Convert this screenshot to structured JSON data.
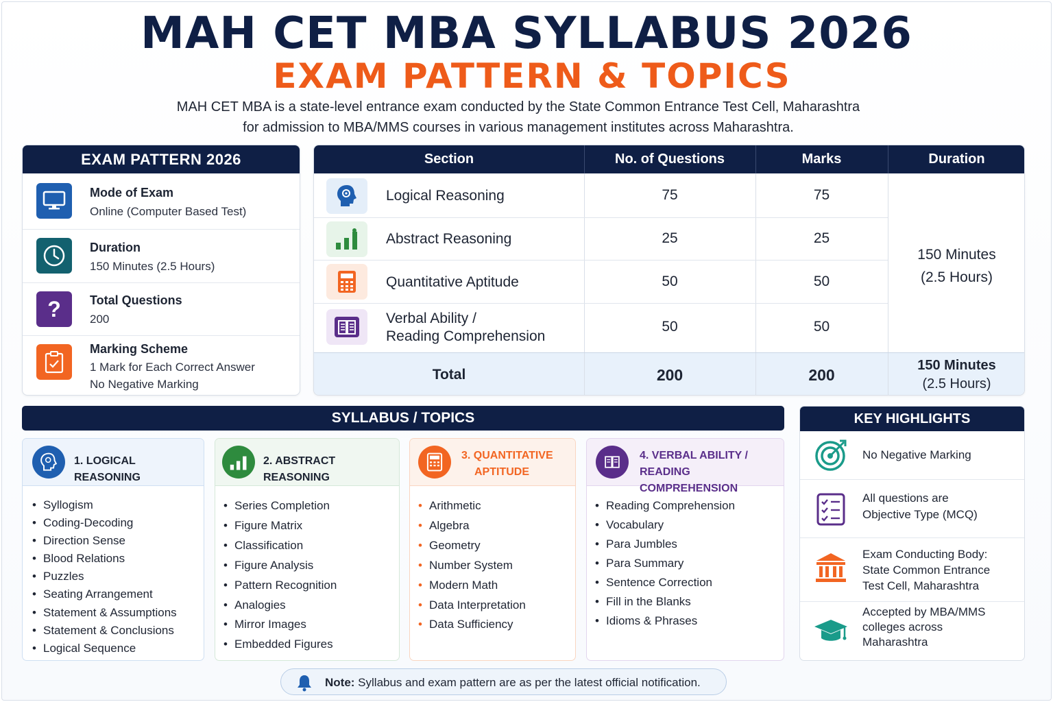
{
  "header": {
    "title": "MAH CET MBA SYLLABUS 2026",
    "subtitle": "EXAM PATTERN & TOPICS",
    "intro_line1": "MAH CET MBA is a state-level entrance exam conducted by the State Common Entrance Test Cell, Maharashtra",
    "intro_line2": "for admission to MBA/MMS courses in various management institutes across Maharashtra."
  },
  "pattern": {
    "heading": "EXAM PATTERN 2026",
    "items": [
      {
        "label": "Mode of Exam",
        "value1": "Online (Computer Based Test)",
        "value2": "",
        "icon": "monitor-icon",
        "color": "#1f5fb0"
      },
      {
        "label": "Duration",
        "value1": "150 Minutes (2.5 Hours)",
        "value2": "",
        "icon": "clock-icon",
        "color": "#13616f"
      },
      {
        "label": "Total Questions",
        "value1": "200",
        "value2": "",
        "icon": "question-icon",
        "color": "#5a2e8a"
      },
      {
        "label": "Marking Scheme",
        "value1": "1 Mark for Each Correct Answer",
        "value2": "No Negative Marking",
        "icon": "clipboard-check-icon",
        "color": "#f26522"
      }
    ]
  },
  "table": {
    "headers": [
      "Section",
      "No. of Questions",
      "Marks",
      "Duration"
    ],
    "rows": [
      {
        "section1": "Logical Reasoning",
        "section2": "",
        "questions": "75",
        "marks": "75",
        "icon": "brain-icon"
      },
      {
        "section1": "Abstract Reasoning",
        "section2": "",
        "questions": "25",
        "marks": "25",
        "icon": "bar-chart-icon"
      },
      {
        "section1": "Quantitative Aptitude",
        "section2": "",
        "questions": "50",
        "marks": "50",
        "icon": "calculator-icon"
      },
      {
        "section1": "Verbal Ability /",
        "section2": "Reading Comprehension",
        "questions": "50",
        "marks": "50",
        "icon": "book-icon"
      }
    ],
    "duration1": "150 Minutes",
    "duration2": "(2.5 Hours)",
    "total": {
      "label": "Total",
      "questions": "200",
      "marks": "200",
      "duration1": "150 Minutes",
      "duration2": "(2.5 Hours)"
    }
  },
  "syllabus": {
    "heading": "SYLLABUS / TOPICS",
    "sections": [
      {
        "title1": "1. LOGICAL REASONING",
        "title2": "",
        "color": "#1f5fb0",
        "topics": [
          "Syllogism",
          "Coding-Decoding",
          "Direction Sense",
          "Blood Relations",
          "Puzzles",
          "Seating Arrangement",
          "Statement & Assumptions",
          "Statement & Conclusions",
          "Logical Sequence"
        ]
      },
      {
        "title1": "2. ABSTRACT REASONING",
        "title2": "",
        "color": "#2e8b3e",
        "topics": [
          "Series Completion",
          "Figure Matrix",
          "Classification",
          "Figure Analysis",
          "Pattern Recognition",
          "Analogies",
          "Mirror Images",
          "Embedded Figures"
        ]
      },
      {
        "title1": "3. QUANTITATIVE",
        "title2": "APTITUDE",
        "color": "#f26522",
        "topics": [
          "Arithmetic",
          "Algebra",
          "Geometry",
          "Number System",
          "Modern Math",
          "Data Interpretation",
          "Data Sufficiency"
        ]
      },
      {
        "title1": "4. VERBAL ABILITY /",
        "title2": "READING COMPREHENSION",
        "color": "#5a2e8a",
        "topics": [
          "Reading Comprehension",
          "Vocabulary",
          "Para Jumbles",
          "Para Summary",
          "Sentence Correction",
          "Fill in the Blanks",
          "Idioms & Phrases"
        ]
      }
    ]
  },
  "highlights": {
    "heading": "KEY HIGHLIGHTS",
    "items": [
      {
        "lines": [
          "No Negative Marking"
        ],
        "icon": "target-icon"
      },
      {
        "lines": [
          "All questions are",
          "Objective Type (MCQ)"
        ],
        "icon": "checklist-icon"
      },
      {
        "lines": [
          "Exam Conducting Body:",
          "State Common Entrance",
          "Test Cell, Maharashtra"
        ],
        "icon": "institution-icon"
      },
      {
        "lines": [
          "Accepted by MBA/MMS",
          "colleges across",
          "Maharashtra"
        ],
        "icon": "graduation-cap-icon"
      }
    ]
  },
  "note": {
    "label": "Note:",
    "text": " Syllabus and exam pattern are as per the latest official notification."
  }
}
